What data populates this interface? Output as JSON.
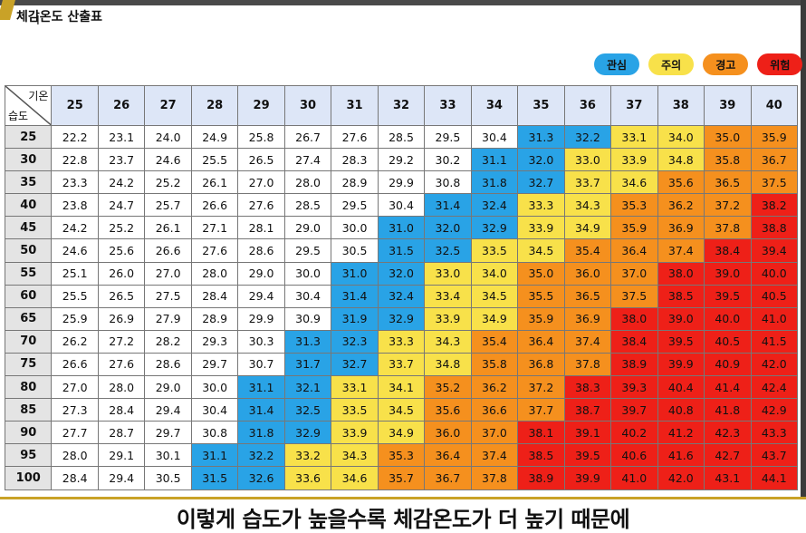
{
  "title": "체감온도 산출표",
  "legend": [
    {
      "label": "관심",
      "color": "#29a3e6"
    },
    {
      "label": "주의",
      "color": "#f8e14a"
    },
    {
      "label": "경고",
      "color": "#f5901e"
    },
    {
      "label": "위험",
      "color": "#ee2018"
    }
  ],
  "corner": {
    "temp_label": "기온",
    "humidity_label": "습도"
  },
  "temperatures": [
    "25",
    "26",
    "27",
    "28",
    "29",
    "30",
    "31",
    "32",
    "33",
    "34",
    "35",
    "36",
    "37",
    "38",
    "39",
    "40"
  ],
  "humidity": [
    "25",
    "30",
    "35",
    "40",
    "45",
    "50",
    "55",
    "60",
    "65",
    "70",
    "75",
    "80",
    "85",
    "90",
    "95",
    "100"
  ],
  "thresholds": {
    "caution_from": 31.0,
    "warning_from": 33.0,
    "alert_from": 35.0,
    "danger_from": 38.0
  },
  "rows": [
    [
      "22.2",
      "23.1",
      "24.0",
      "24.9",
      "25.8",
      "26.7",
      "27.6",
      "28.5",
      "29.5",
      "30.4",
      "31.3",
      "32.2",
      "33.1",
      "34.0",
      "35.0",
      "35.9"
    ],
    [
      "22.8",
      "23.7",
      "24.6",
      "25.5",
      "26.5",
      "27.4",
      "28.3",
      "29.2",
      "30.2",
      "31.1",
      "32.0",
      "33.0",
      "33.9",
      "34.8",
      "35.8",
      "36.7"
    ],
    [
      "23.3",
      "24.2",
      "25.2",
      "26.1",
      "27.0",
      "28.0",
      "28.9",
      "29.9",
      "30.8",
      "31.8",
      "32.7",
      "33.7",
      "34.6",
      "35.6",
      "36.5",
      "37.5"
    ],
    [
      "23.8",
      "24.7",
      "25.7",
      "26.6",
      "27.6",
      "28.5",
      "29.5",
      "30.4",
      "31.4",
      "32.4",
      "33.3",
      "34.3",
      "35.3",
      "36.2",
      "37.2",
      "38.2"
    ],
    [
      "24.2",
      "25.2",
      "26.1",
      "27.1",
      "28.1",
      "29.0",
      "30.0",
      "31.0",
      "32.0",
      "32.9",
      "33.9",
      "34.9",
      "35.9",
      "36.9",
      "37.8",
      "38.8"
    ],
    [
      "24.6",
      "25.6",
      "26.6",
      "27.6",
      "28.6",
      "29.5",
      "30.5",
      "31.5",
      "32.5",
      "33.5",
      "34.5",
      "35.4",
      "36.4",
      "37.4",
      "38.4",
      "39.4"
    ],
    [
      "25.1",
      "26.0",
      "27.0",
      "28.0",
      "29.0",
      "30.0",
      "31.0",
      "32.0",
      "33.0",
      "34.0",
      "35.0",
      "36.0",
      "37.0",
      "38.0",
      "39.0",
      "40.0"
    ],
    [
      "25.5",
      "26.5",
      "27.5",
      "28.4",
      "29.4",
      "30.4",
      "31.4",
      "32.4",
      "33.4",
      "34.5",
      "35.5",
      "36.5",
      "37.5",
      "38.5",
      "39.5",
      "40.5"
    ],
    [
      "25.9",
      "26.9",
      "27.9",
      "28.9",
      "29.9",
      "30.9",
      "31.9",
      "32.9",
      "33.9",
      "34.9",
      "35.9",
      "36.9",
      "38.0",
      "39.0",
      "40.0",
      "41.0"
    ],
    [
      "26.2",
      "27.2",
      "28.2",
      "29.3",
      "30.3",
      "31.3",
      "32.3",
      "33.3",
      "34.3",
      "35.4",
      "36.4",
      "37.4",
      "38.4",
      "39.5",
      "40.5",
      "41.5"
    ],
    [
      "26.6",
      "27.6",
      "28.6",
      "29.7",
      "30.7",
      "31.7",
      "32.7",
      "33.7",
      "34.8",
      "35.8",
      "36.8",
      "37.8",
      "38.9",
      "39.9",
      "40.9",
      "42.0"
    ],
    [
      "27.0",
      "28.0",
      "29.0",
      "30.0",
      "31.1",
      "32.1",
      "33.1",
      "34.1",
      "35.2",
      "36.2",
      "37.2",
      "38.3",
      "39.3",
      "40.4",
      "41.4",
      "42.4"
    ],
    [
      "27.3",
      "28.4",
      "29.4",
      "30.4",
      "31.4",
      "32.5",
      "33.5",
      "34.5",
      "35.6",
      "36.6",
      "37.7",
      "38.7",
      "39.7",
      "40.8",
      "41.8",
      "42.9"
    ],
    [
      "27.7",
      "28.7",
      "29.7",
      "30.8",
      "31.8",
      "32.9",
      "33.9",
      "34.9",
      "36.0",
      "37.0",
      "38.1",
      "39.1",
      "40.2",
      "41.2",
      "42.3",
      "43.3"
    ],
    [
      "28.0",
      "29.1",
      "30.1",
      "31.1",
      "32.2",
      "33.2",
      "34.3",
      "35.3",
      "36.4",
      "37.4",
      "38.5",
      "39.5",
      "40.6",
      "41.6",
      "42.7",
      "43.7"
    ],
    [
      "28.4",
      "29.4",
      "30.5",
      "31.5",
      "32.6",
      "33.6",
      "34.6",
      "35.7",
      "36.7",
      "37.8",
      "38.9",
      "39.9",
      "41.0",
      "42.0",
      "43.1",
      "44.1"
    ]
  ],
  "subtitle": "이렇게 습도가 높을수록 체감온도가 더 높기 때문에"
}
